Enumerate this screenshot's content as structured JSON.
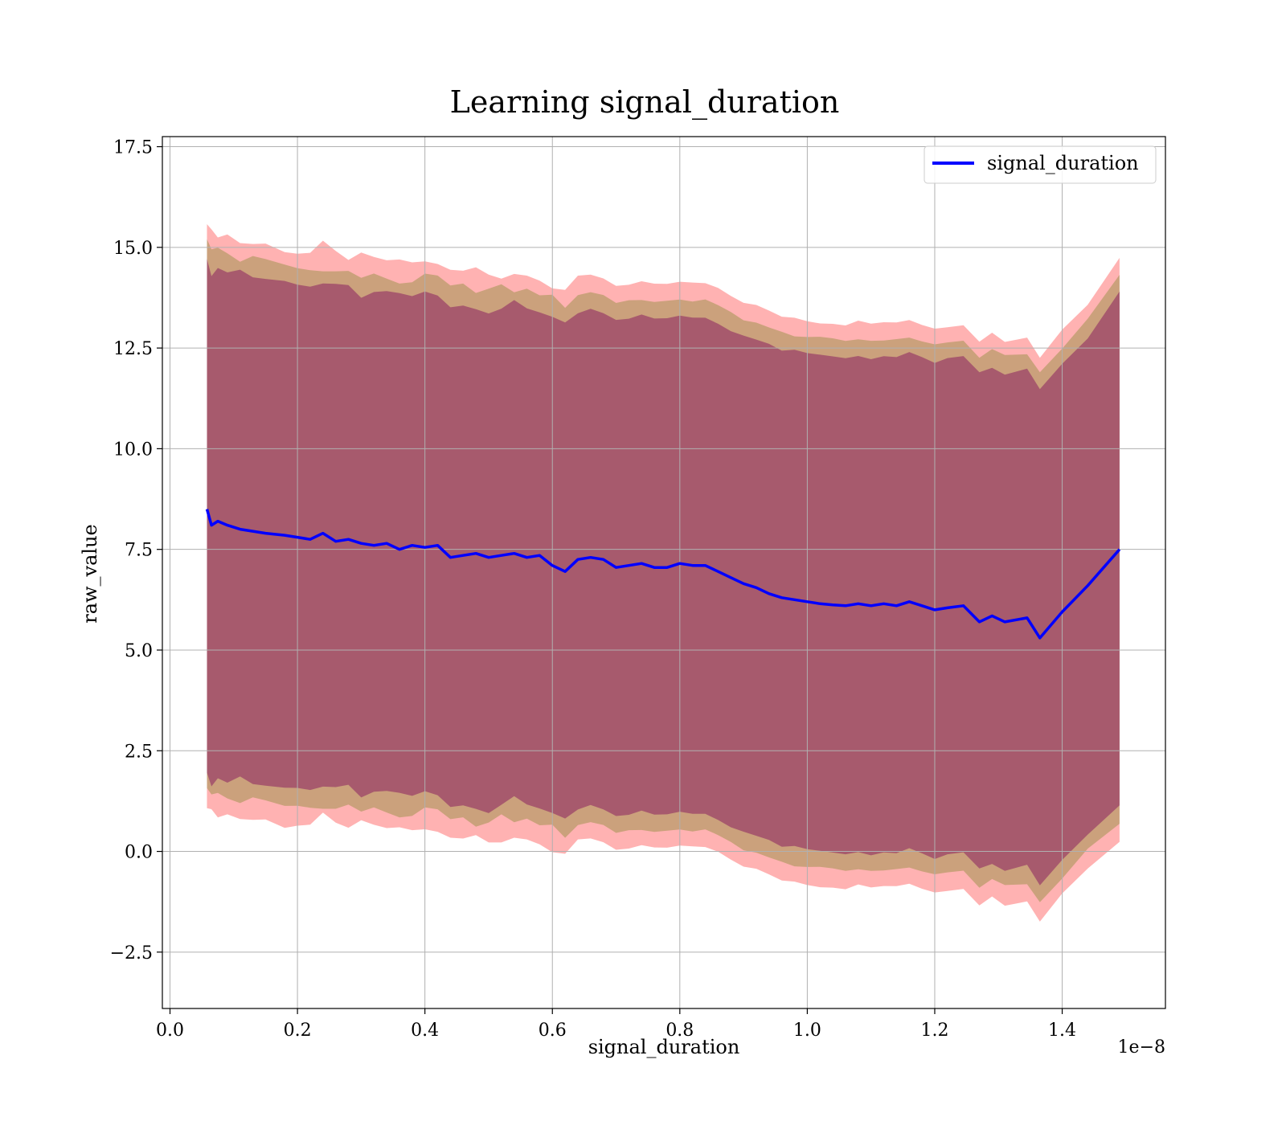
{
  "chart_data": {
    "type": "line",
    "title": "Learning signal_duration",
    "xlabel": "signal_duration",
    "ylabel": "raw_value",
    "x_offset_label": "1e−8",
    "xlim": [
      -0.012,
      1.562
    ],
    "ylim": [
      -3.9,
      17.75
    ],
    "grid": true,
    "legend_position": "top-right",
    "x_ticks": [
      0.0,
      0.2,
      0.4,
      0.6,
      0.8,
      1.0,
      1.2,
      1.4
    ],
    "x_tick_labels": [
      "0.0",
      "0.2",
      "0.4",
      "0.6",
      "0.8",
      "1.0",
      "1.2",
      "1.4"
    ],
    "y_ticks": [
      -2.5,
      0.0,
      2.5,
      5.0,
      7.5,
      10.0,
      12.5,
      15.0,
      17.5
    ],
    "y_tick_labels": [
      "−2.5",
      "0.0",
      "2.5",
      "5.0",
      "7.5",
      "10.0",
      "12.5",
      "15.0",
      "17.5"
    ],
    "colors": {
      "line": "#0000ff",
      "outer_band": "#ff0000",
      "middle_band": "#8b8b3a",
      "inner_band": "#8b2060"
    },
    "series": [
      {
        "name": "signal_duration",
        "x": [
          0.058,
          0.065,
          0.075,
          0.09,
          0.11,
          0.13,
          0.15,
          0.18,
          0.2,
          0.22,
          0.24,
          0.26,
          0.28,
          0.3,
          0.32,
          0.34,
          0.36,
          0.38,
          0.4,
          0.42,
          0.44,
          0.46,
          0.48,
          0.5,
          0.52,
          0.54,
          0.56,
          0.58,
          0.6,
          0.62,
          0.64,
          0.66,
          0.68,
          0.7,
          0.72,
          0.74,
          0.76,
          0.78,
          0.8,
          0.82,
          0.84,
          0.86,
          0.88,
          0.9,
          0.92,
          0.94,
          0.96,
          0.98,
          1.0,
          1.02,
          1.04,
          1.06,
          1.08,
          1.1,
          1.12,
          1.14,
          1.16,
          1.18,
          1.2,
          1.22,
          1.245,
          1.27,
          1.29,
          1.31,
          1.345,
          1.365,
          1.4,
          1.44,
          1.49
        ],
        "y": [
          8.5,
          8.1,
          8.2,
          8.1,
          8.0,
          7.95,
          7.9,
          7.85,
          7.8,
          7.75,
          7.9,
          7.7,
          7.75,
          7.65,
          7.6,
          7.65,
          7.5,
          7.6,
          7.55,
          7.6,
          7.3,
          7.35,
          7.4,
          7.3,
          7.35,
          7.4,
          7.3,
          7.35,
          7.1,
          6.95,
          7.25,
          7.3,
          7.25,
          7.05,
          7.1,
          7.15,
          7.05,
          7.05,
          7.15,
          7.1,
          7.1,
          6.95,
          6.8,
          6.65,
          6.55,
          6.4,
          6.3,
          6.25,
          6.2,
          6.15,
          6.12,
          6.1,
          6.15,
          6.1,
          6.15,
          6.1,
          6.2,
          6.1,
          6.0,
          6.05,
          6.1,
          5.7,
          5.85,
          5.7,
          5.8,
          5.3,
          5.95,
          6.6,
          7.5
        ],
        "std": [
          7.25,
          7.2,
          7.2,
          7.2,
          7.15,
          7.15,
          7.15,
          7.15,
          7.1,
          7.1,
          7.1,
          7.1,
          7.05,
          7.05,
          7.05,
          7.05,
          7.05,
          7.05,
          7.05,
          7.05,
          7.05,
          7.05,
          7.05,
          7.05,
          7.0,
          7.0,
          7.0,
          7.0,
          7.0,
          7.0,
          7.0,
          7.0,
          7.0,
          7.0,
          7.0,
          7.0,
          7.0,
          7.0,
          7.0,
          7.0,
          7.0,
          7.0,
          7.0,
          7.0,
          7.0,
          7.0,
          7.0,
          7.0,
          7.0,
          7.0,
          7.0,
          7.0,
          7.0,
          7.0,
          7.0,
          7.0,
          7.0,
          7.0,
          7.0,
          7.0,
          7.0,
          7.0,
          7.0,
          7.0,
          7.0,
          7.0,
          7.0,
          7.0,
          7.25
        ]
      }
    ]
  }
}
